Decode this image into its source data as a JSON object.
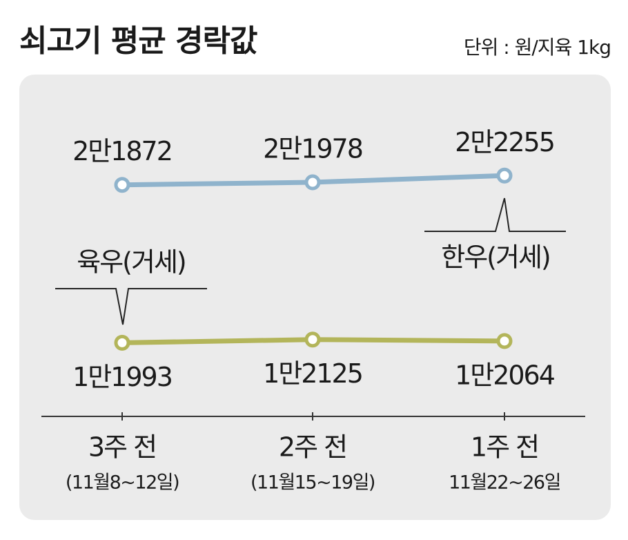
{
  "chart_data": {
    "type": "line",
    "title": "쇠고기 평균 경락값",
    "subtitle": "단위 : 원/지육 1kg",
    "categories": [
      "3주 전",
      "2주 전",
      "1주 전"
    ],
    "category_dates": [
      "(11월8~12일)",
      "(11월15~19일)",
      "11월22~26일"
    ],
    "series": [
      {
        "name": "한우(거세)",
        "color": "#8fb3cc",
        "values": [
          21872,
          21978,
          22255
        ],
        "value_labels": [
          "2만1872",
          "2만1978",
          "2만2255"
        ]
      },
      {
        "name": "육우(거세)",
        "color": "#b3b55a",
        "values": [
          11993,
          12125,
          12064
        ],
        "value_labels": [
          "1만1993",
          "1만2125",
          "1만2064"
        ]
      }
    ]
  }
}
